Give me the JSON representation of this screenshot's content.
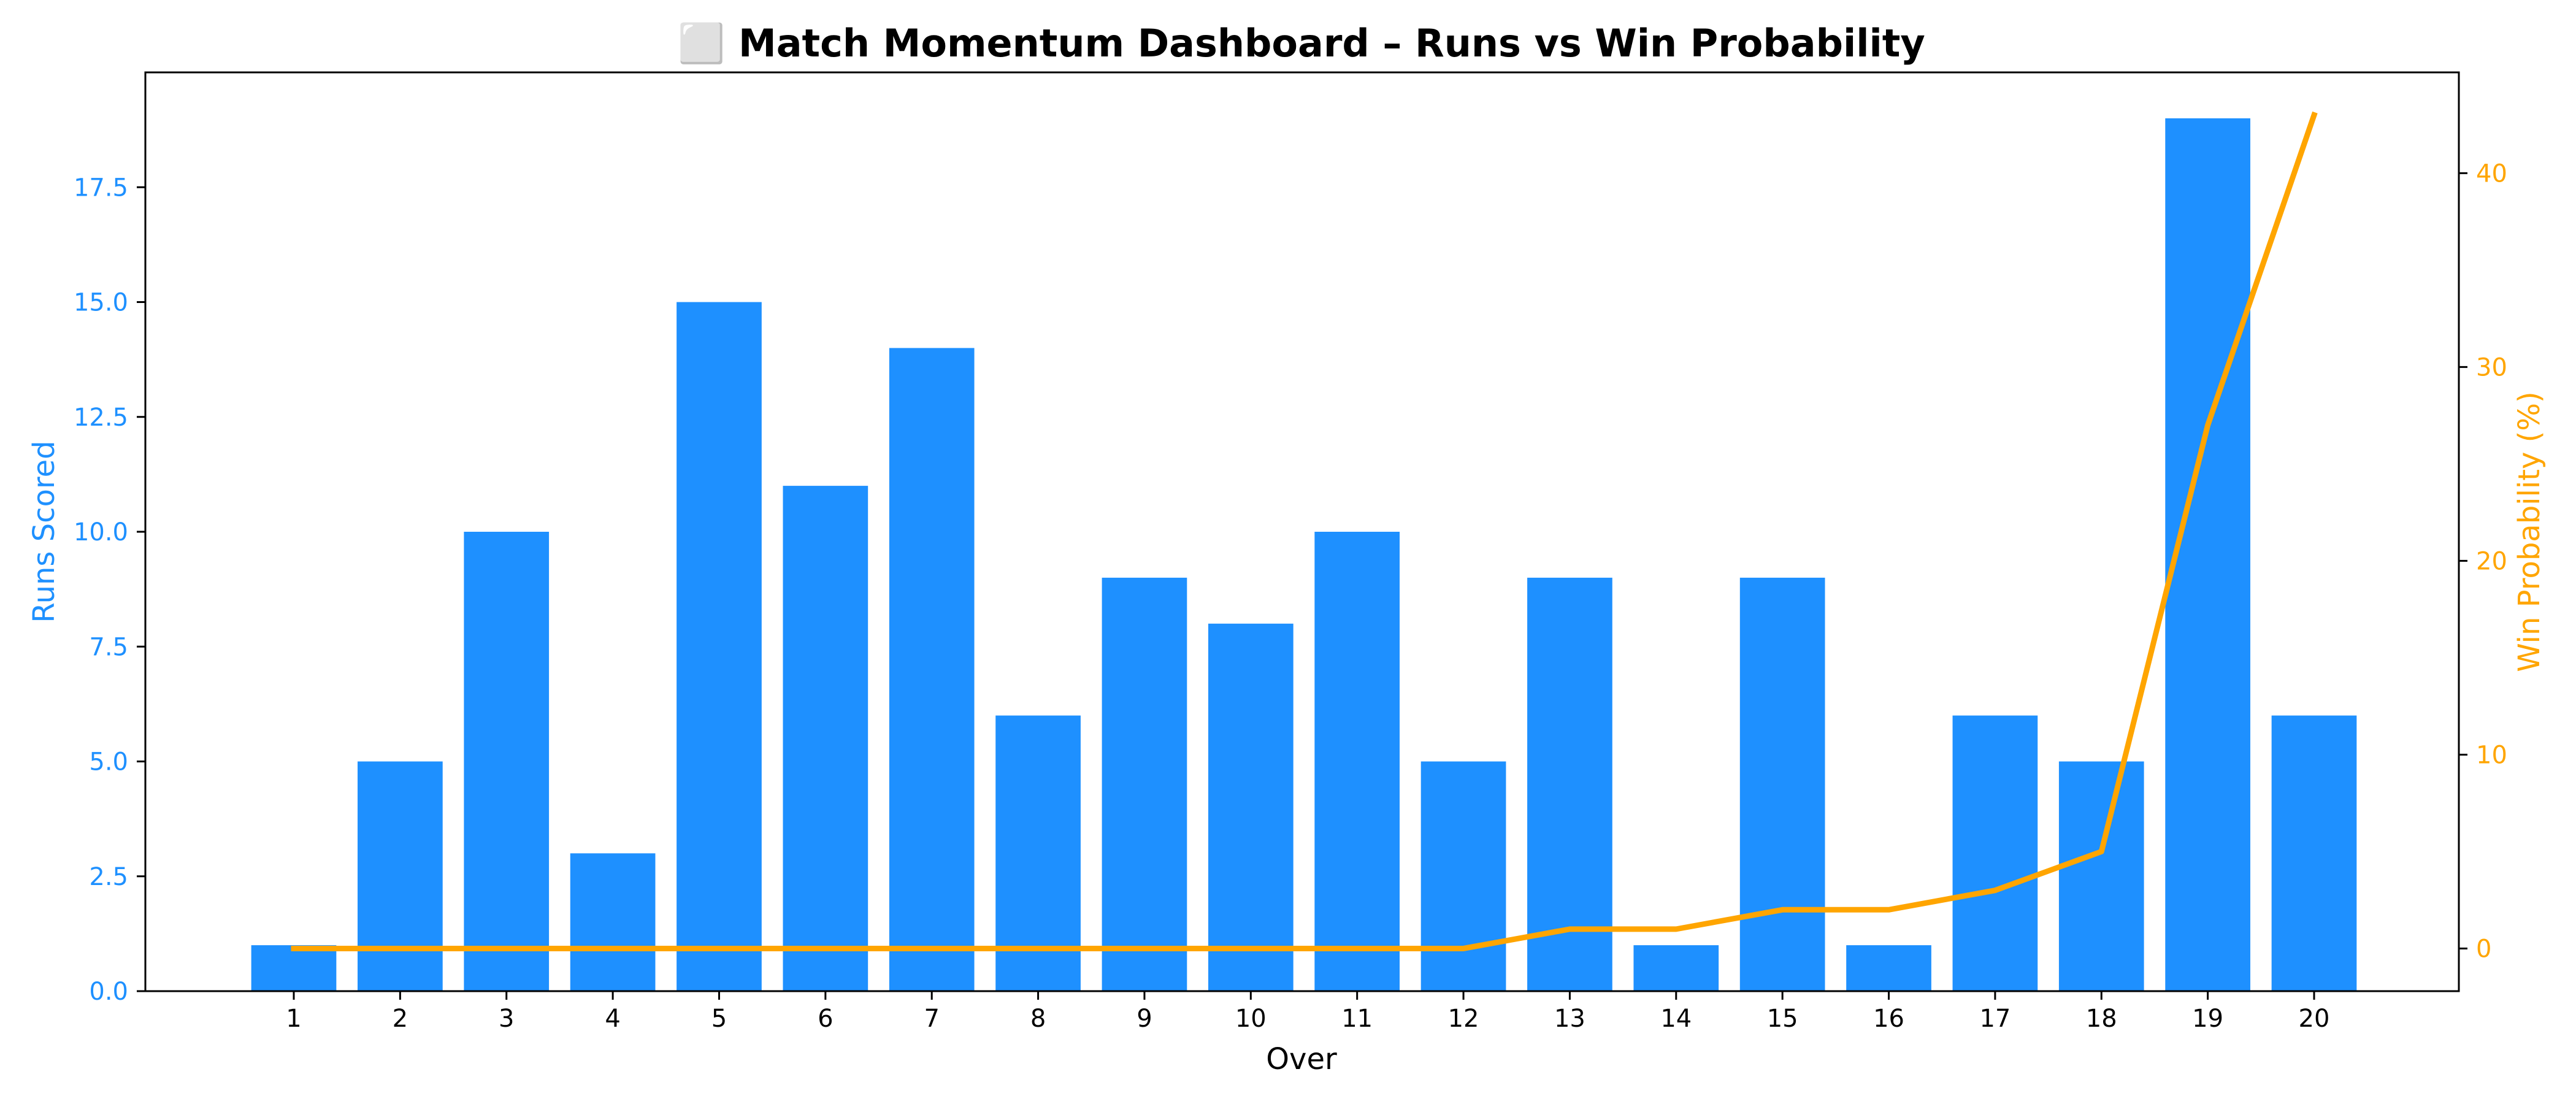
{
  "chart_data": {
    "type": "bar",
    "title": "⬜ Match Momentum Dashboard – Runs vs Win Probability",
    "xlabel": "Over",
    "ylabel": "Runs Scored",
    "y2label": "Win Probability (%)",
    "categories": [
      "1",
      "2",
      "3",
      "4",
      "5",
      "6",
      "7",
      "8",
      "9",
      "10",
      "11",
      "12",
      "13",
      "14",
      "15",
      "16",
      "17",
      "18",
      "19",
      "20"
    ],
    "series": [
      {
        "chart_type": "bar",
        "axis": "left",
        "color": "#1E90FF",
        "values": [
          1,
          5,
          10,
          3,
          15,
          11,
          14,
          6,
          9,
          8,
          10,
          5,
          9,
          1,
          9,
          1,
          6,
          5,
          19,
          6
        ]
      },
      {
        "chart_type": "line",
        "axis": "right",
        "color": "#FFA500",
        "values": [
          0,
          0,
          0,
          0,
          0,
          0,
          0,
          0,
          0,
          0,
          0,
          0,
          1,
          1,
          2,
          2,
          3,
          5,
          27,
          43
        ]
      }
    ],
    "ylim": [
      0,
      20
    ],
    "y2lim": [
      -2.2,
      45.2
    ],
    "yticks": [
      "0.0",
      "2.5",
      "5.0",
      "7.5",
      "10.0",
      "12.5",
      "15.0",
      "17.5"
    ],
    "y2ticks": [
      "0",
      "10",
      "20",
      "30",
      "40"
    ],
    "grid": false,
    "legend": "none"
  }
}
